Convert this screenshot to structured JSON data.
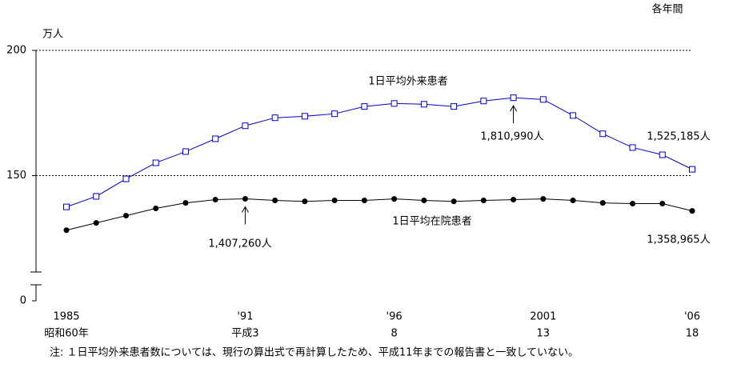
{
  "chart_data": {
    "type": "line",
    "unit_label": "万人",
    "period_label": "各年間",
    "note": "注: １日平均外来患者数については、現行の算出式で再計算したため、平成11年までの報告書と一致していない。",
    "x": [
      1985,
      1986,
      1987,
      1988,
      1989,
      1990,
      1991,
      1992,
      1993,
      1994,
      1995,
      1996,
      1997,
      1998,
      1999,
      2000,
      2001,
      2002,
      2003,
      2004,
      2005,
      2006
    ],
    "xlim": [
      1985,
      2006
    ],
    "xticks": [
      {
        "value": 1985,
        "label": "1985"
      },
      {
        "value": 1991,
        "label": "'91"
      },
      {
        "value": 1996,
        "label": "'96"
      },
      {
        "value": 2001,
        "label": "2001"
      },
      {
        "value": 2006,
        "label": "'06"
      }
    ],
    "era_ticks": [
      {
        "value": 1985,
        "label": "昭和60年"
      },
      {
        "value": 1991,
        "label": "平成3"
      },
      {
        "value": 1996,
        "label": "8"
      },
      {
        "value": 2001,
        "label": "13"
      },
      {
        "value": 2006,
        "label": "18"
      }
    ],
    "ylim": [
      0,
      200
    ],
    "axis_break": [
      0,
      100
    ],
    "yticks": [
      0,
      150,
      200
    ],
    "grid": true,
    "series": [
      {
        "name": "1日平均外来患者",
        "color": "#0000cc",
        "marker": "square",
        "values": [
          137.5,
          141.7,
          148.7,
          155.1,
          159.6,
          164.7,
          169.9,
          173.1,
          173.7,
          174.7,
          177.6,
          178.8,
          178.5,
          177.6,
          179.8,
          181.099,
          180.4,
          174.0,
          166.7,
          161.2,
          158.3,
          152.5185
        ],
        "value_labels": [
          null,
          null,
          null,
          null,
          null,
          null,
          null,
          null,
          null,
          null,
          null,
          null,
          null,
          null,
          null,
          "1,810,990人",
          null,
          null,
          null,
          null,
          null,
          "1,525,185人"
        ]
      },
      {
        "name": "1日平均在院患者",
        "color": "#000000",
        "marker": "circle",
        "values": [
          128.2,
          131.1,
          134.0,
          136.9,
          139.1,
          140.4,
          140.726,
          140.1,
          139.7,
          140.1,
          140.1,
          140.7,
          140.1,
          139.7,
          140.1,
          140.4,
          140.7,
          140.1,
          139.1,
          138.8,
          138.8,
          135.8965
        ],
        "value_labels": [
          null,
          null,
          null,
          null,
          null,
          null,
          "1,407,260人",
          null,
          null,
          null,
          null,
          null,
          null,
          null,
          null,
          null,
          null,
          null,
          null,
          null,
          null,
          "1,358,965人"
        ]
      }
    ]
  }
}
